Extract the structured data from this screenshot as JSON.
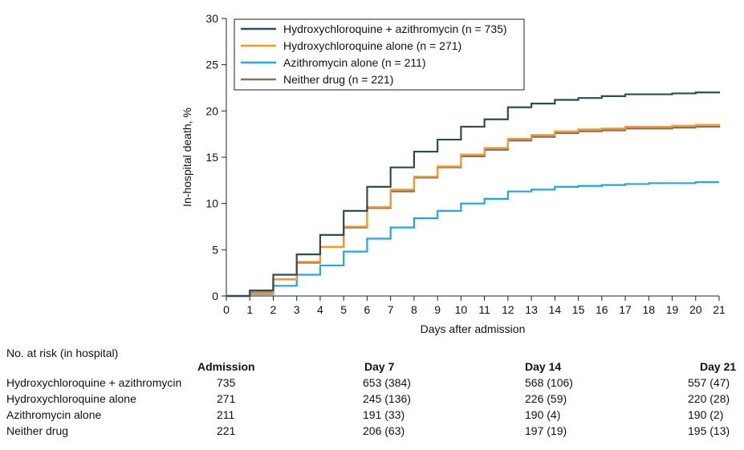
{
  "chart_data": {
    "type": "line",
    "step": true,
    "xlabel": "Days after admission",
    "ylabel": "In-hospital death, %",
    "xlim": [
      0,
      21
    ],
    "ylim": [
      0,
      30
    ],
    "xticks": [
      0,
      1,
      2,
      3,
      4,
      5,
      6,
      7,
      8,
      9,
      10,
      11,
      12,
      13,
      14,
      15,
      16,
      17,
      18,
      19,
      20,
      21
    ],
    "yticks": [
      0,
      5,
      10,
      15,
      20,
      25,
      30
    ],
    "grid": false,
    "legend_position": "top-left",
    "x": [
      0,
      1,
      2,
      3,
      4,
      5,
      6,
      7,
      8,
      9,
      10,
      11,
      12,
      13,
      14,
      15,
      16,
      17,
      18,
      19,
      20,
      21
    ],
    "series": [
      {
        "name": "Hydroxychloroquine + azithromycin (n = 735)",
        "color": "#2f4b57",
        "values": [
          0,
          0.6,
          2.3,
          4.5,
          6.6,
          9.2,
          11.8,
          13.9,
          15.6,
          16.9,
          18.3,
          19.1,
          20.4,
          20.8,
          21.2,
          21.4,
          21.6,
          21.8,
          21.8,
          21.9,
          22.0,
          22.1
        ]
      },
      {
        "name": "Hydroxychloroquine alone (n = 271)",
        "color": "#f39a28",
        "values": [
          0,
          0.3,
          1.8,
          3.7,
          5.3,
          7.5,
          9.6,
          11.5,
          12.9,
          14.0,
          15.3,
          16.0,
          17.0,
          17.4,
          17.8,
          18.0,
          18.1,
          18.3,
          18.3,
          18.4,
          18.5,
          18.6
        ]
      },
      {
        "name": "Azithromycin alone (n = 211)",
        "color": "#1fa9e1",
        "values": [
          0,
          0.2,
          1.1,
          2.3,
          3.3,
          4.8,
          6.2,
          7.4,
          8.4,
          9.2,
          10.0,
          10.5,
          11.3,
          11.5,
          11.8,
          11.9,
          12.0,
          12.1,
          12.2,
          12.2,
          12.3,
          12.3
        ]
      },
      {
        "name": "Neither drug (n = 221)",
        "color": "#8b6f5c",
        "values": [
          0,
          0.4,
          1.8,
          3.6,
          5.3,
          7.4,
          9.5,
          11.3,
          12.8,
          13.9,
          15.1,
          15.8,
          16.8,
          17.2,
          17.6,
          17.8,
          17.9,
          18.1,
          18.1,
          18.2,
          18.3,
          18.4
        ]
      }
    ]
  },
  "risk_table": {
    "title": "No. at risk (in hospital)",
    "columns": [
      "Admission",
      "Day 7",
      "Day 14",
      "Day 21"
    ],
    "rows": [
      {
        "label": "Hydroxychloroquine + azithromycin",
        "values": [
          "735",
          "653 (384)",
          "568 (106)",
          "557 (47)"
        ]
      },
      {
        "label": "Hydroxychloroquine alone",
        "values": [
          "271",
          "245 (136)",
          "226 (59)",
          "220 (28)"
        ]
      },
      {
        "label": "Azithromycin alone",
        "values": [
          "211",
          "191 (33)",
          "190 (4)",
          "190 (2)"
        ]
      },
      {
        "label": "Neither drug",
        "values": [
          "221",
          "206 (63)",
          "197 (19)",
          "195 (13)"
        ]
      }
    ]
  }
}
